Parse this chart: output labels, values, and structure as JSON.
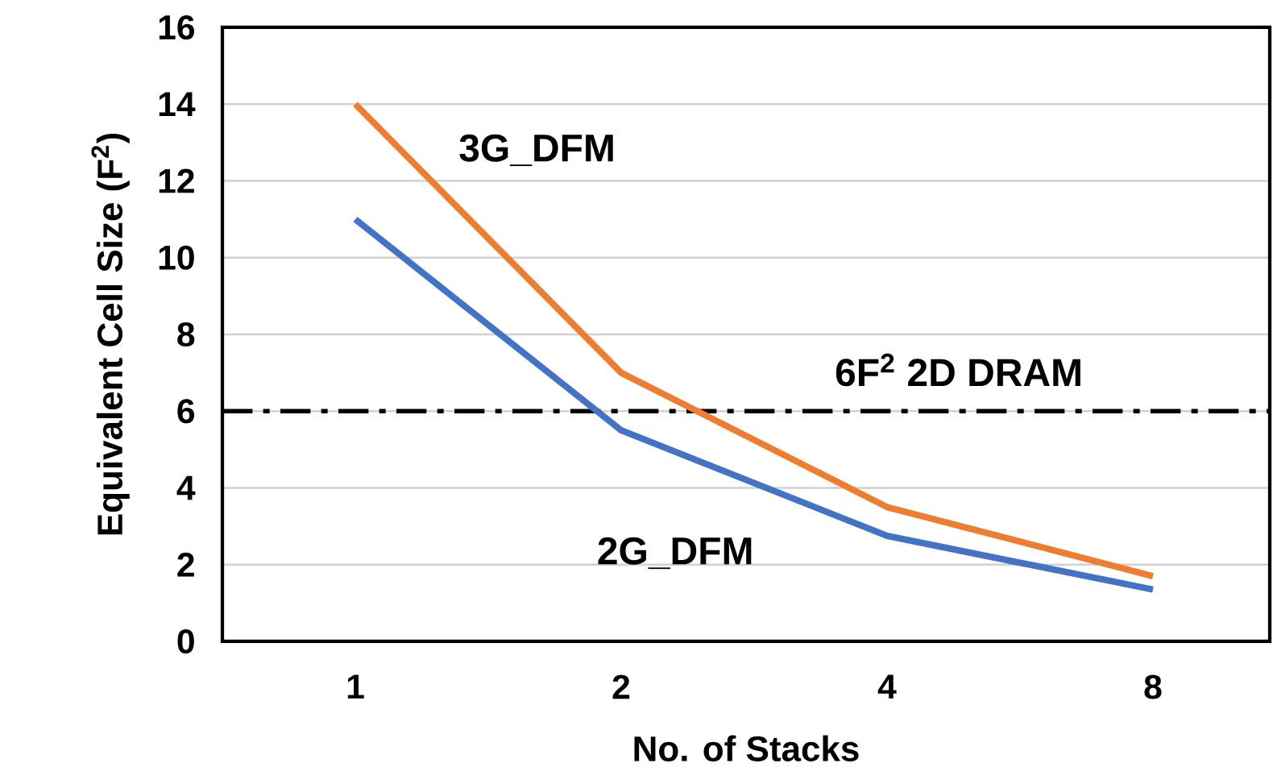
{
  "chart_data": {
    "type": "line",
    "xlabel": "No. of Stacks",
    "ylabel": "Equivalent Cell Size (F$^{2}$)",
    "categories": [
      "1",
      "2",
      "4",
      "8"
    ],
    "series": [
      {
        "name": "3G_DFM",
        "color": "#ed7d31",
        "values": [
          14,
          7,
          3.5,
          1.7
        ]
      },
      {
        "name": "2G_DFM",
        "color": "#4472c4",
        "values": [
          11,
          5.5,
          2.75,
          1.35
        ]
      }
    ],
    "ylim": [
      0,
      16
    ],
    "yticks": [
      0,
      2,
      4,
      6,
      8,
      10,
      12,
      14,
      16
    ],
    "grid": "y",
    "marker": "none",
    "line_style": "solid",
    "ref_lines": [
      {
        "axis": "y",
        "value": 6,
        "label": "6F$^{2}$ 2D DRAM",
        "color": "#000000",
        "line_style": "dashdot"
      }
    ]
  }
}
